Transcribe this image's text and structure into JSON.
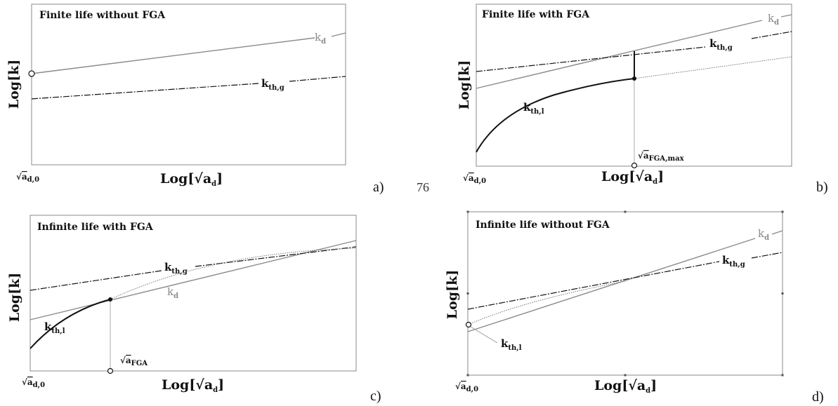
{
  "panels": {
    "a": {
      "title": "Finite life without FGA",
      "letter": "a)",
      "k_d": "k",
      "k_d_sub": "d",
      "k_thg": "k",
      "k_thg_sub": "th,g"
    },
    "b": {
      "title": "Finite life with FGA",
      "letter": "b)",
      "k_d": "k",
      "k_d_sub": "d",
      "k_thg": "k",
      "k_thg_sub": "th,g",
      "k_thl": "k",
      "k_thl_sub": "th,l",
      "marker": "a",
      "marker_sub": "FGA,max"
    },
    "c": {
      "title": "Infinite life with FGA",
      "letter": "c)",
      "k_d": "k",
      "k_d_sub": "d",
      "k_thg": "k",
      "k_thg_sub": "th,g",
      "k_thl": "k",
      "k_thl_sub": "th,l",
      "marker": "a",
      "marker_sub": "FGA"
    },
    "d": {
      "title": "Infinite life without FGA",
      "letter": "d)",
      "k_d": "k",
      "k_d_sub": "d",
      "k_thg": "k",
      "k_thg_sub": "th,g",
      "k_thl": "k",
      "k_thl_sub": "th,l"
    }
  },
  "axes": {
    "ylabel": "Log[k]",
    "xlabel_pre": "Log[",
    "xlabel_post": "]",
    "a_var": "a",
    "a_sub": "d",
    "origin": "a",
    "origin_sub": "d,0"
  },
  "page_number": "76"
}
